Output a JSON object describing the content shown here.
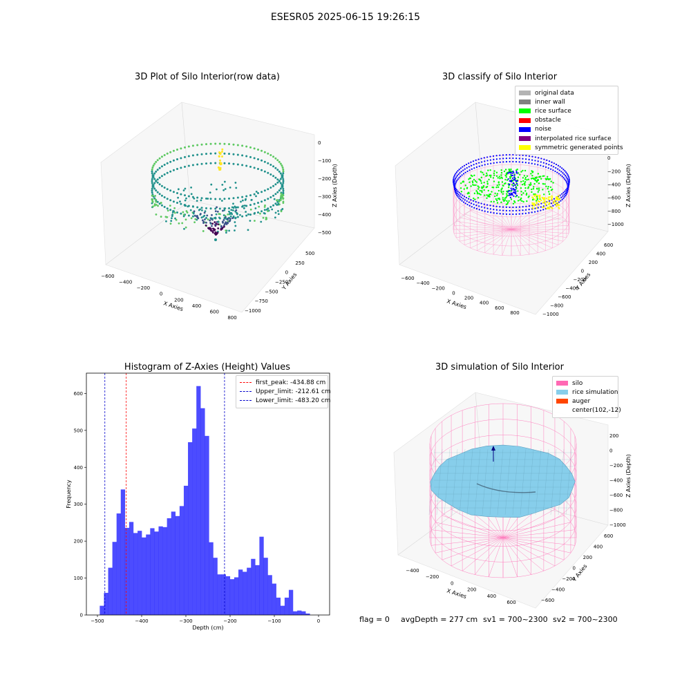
{
  "figure": {
    "suptitle": "ESESR05 2025-06-15 19:26:15",
    "footer": {
      "flag": "flag = 0",
      "avg_depth": "avgDepth = 277 cm",
      "sv1": "sv1 = 700~2300",
      "sv2": "sv2 = 700~2300"
    }
  },
  "chart_data": [
    {
      "type": "scatter3d",
      "title": "3D Plot of Silo Interior(row data)",
      "xlabel": "X Axies",
      "ylabel": "Y Axies",
      "zlabel": "Z Axies (Depth)",
      "x_ticks": [
        "−600",
        "−400",
        "−200",
        "0",
        "200",
        "400",
        "600",
        "800"
      ],
      "y_ticks": [
        "500",
        "250",
        "0",
        "−250",
        "−500",
        "−750",
        "−1000"
      ],
      "z_ticks": [
        "0",
        "−100",
        "−200",
        "−300",
        "−400",
        "−500"
      ],
      "xlim": [
        -650,
        820
      ],
      "ylim": [
        -1050,
        550
      ],
      "zlim": [
        -520,
        10
      ],
      "colormap": "viridis"
    },
    {
      "type": "scatter3d",
      "title": "3D classify of Silo Interior",
      "xlabel": "X Axies",
      "ylabel": "Y Axies",
      "zlabel": "Z Axies (Depth)",
      "x_ticks": [
        "−600",
        "−400",
        "−200",
        "0",
        "200",
        "400",
        "600",
        "800"
      ],
      "y_ticks": [
        "600",
        "400",
        "200",
        "0",
        "−200",
        "−400",
        "−600",
        "−800",
        "−1000"
      ],
      "z_ticks": [
        "200",
        "0",
        "−200",
        "−400",
        "−600",
        "−800",
        "−1000"
      ],
      "legend": [
        {
          "label": "original data",
          "color": "#b3b3b3"
        },
        {
          "label": "inner wall",
          "color": "#808080"
        },
        {
          "label": "rice surface",
          "color": "#00ff00"
        },
        {
          "label": "obstacle",
          "color": "#ff0000"
        },
        {
          "label": "noise",
          "color": "#0000ff"
        },
        {
          "label": "interpolated rice surface",
          "color": "#800080"
        },
        {
          "label": "symmetric generated points",
          "color": "#ffff00"
        }
      ]
    },
    {
      "type": "bar",
      "title": "Histogram of Z-Axies (Height) Values",
      "xlabel": "Depth (cm)",
      "ylabel": "Frequency",
      "xlim": [
        -525,
        25
      ],
      "ylim": [
        0,
        655
      ],
      "x_ticks": [
        -500,
        -400,
        -300,
        -200,
        -100,
        0
      ],
      "y_ticks": [
        0,
        100,
        200,
        300,
        400,
        500,
        600
      ],
      "bar_color": "#0000ff",
      "bar_opacity": 0.7,
      "bins": [
        [
          -490.0,
          25
        ],
        [
          -480.5,
          60
        ],
        [
          -471.0,
          128
        ],
        [
          -461.5,
          198
        ],
        [
          -452.0,
          275
        ],
        [
          -442.5,
          340
        ],
        [
          -433.0,
          236
        ],
        [
          -423.5,
          252
        ],
        [
          -414.0,
          222
        ],
        [
          -404.5,
          228
        ],
        [
          -395.0,
          210
        ],
        [
          -385.5,
          218
        ],
        [
          -376.0,
          235
        ],
        [
          -366.5,
          226
        ],
        [
          -357.0,
          240
        ],
        [
          -347.5,
          238
        ],
        [
          -338.0,
          262
        ],
        [
          -328.5,
          280
        ],
        [
          -319.0,
          268
        ],
        [
          -309.5,
          295
        ],
        [
          -300.0,
          350
        ],
        [
          -290.5,
          468
        ],
        [
          -281.0,
          505
        ],
        [
          -271.5,
          620
        ],
        [
          -262.0,
          560
        ],
        [
          -252.5,
          485
        ],
        [
          -243.0,
          197
        ],
        [
          -233.5,
          155
        ],
        [
          -224.0,
          110
        ],
        [
          -214.5,
          110
        ],
        [
          -205.0,
          105
        ],
        [
          -195.5,
          97
        ],
        [
          -186.0,
          102
        ],
        [
          -176.5,
          123
        ],
        [
          -167.0,
          117
        ],
        [
          -157.5,
          128
        ],
        [
          -148.0,
          152
        ],
        [
          -138.5,
          135
        ],
        [
          -129.0,
          212
        ],
        [
          -119.5,
          155
        ],
        [
          -110.0,
          108
        ],
        [
          -100.5,
          85
        ],
        [
          -91.0,
          47
        ],
        [
          -81.5,
          25
        ],
        [
          -72.0,
          47
        ],
        [
          -62.5,
          68
        ],
        [
          -53.0,
          10
        ],
        [
          -43.5,
          12
        ],
        [
          -34.0,
          10
        ],
        [
          -24.5,
          4
        ]
      ],
      "vlines": [
        {
          "x": -434.88,
          "color": "#ff0000",
          "label": "first_peak: -434.88 cm"
        },
        {
          "x": -212.61,
          "color": "#0000cc",
          "label": "Upper_limit: -212.61 cm"
        },
        {
          "x": -483.2,
          "color": "#0000cc",
          "label": "Lower_limit: -483.20 cm"
        }
      ],
      "legend_position": "top-right"
    },
    {
      "type": "surface3d",
      "title": "3D simulation of Silo Interior",
      "xlabel": "X Axies",
      "ylabel": "Y Axies",
      "zlabel": "Z Axies (Depth)",
      "x_ticks": [
        "−400",
        "−200",
        "0",
        "200",
        "400",
        "600"
      ],
      "y_ticks": [
        "600",
        "400",
        "200",
        "0",
        "−200",
        "−400",
        "−600"
      ],
      "z_ticks": [
        "200",
        "0",
        "−200",
        "−400",
        "−600",
        "−800",
        "−1000"
      ],
      "legend": [
        {
          "label": "silo",
          "color": "#ff69b4"
        },
        {
          "label": "rice simulation",
          "color": "#87ceeb"
        },
        {
          "label": "auger",
          "color": "#ff4500"
        },
        {
          "label": "center(102,-12)",
          "color": ""
        }
      ]
    }
  ]
}
